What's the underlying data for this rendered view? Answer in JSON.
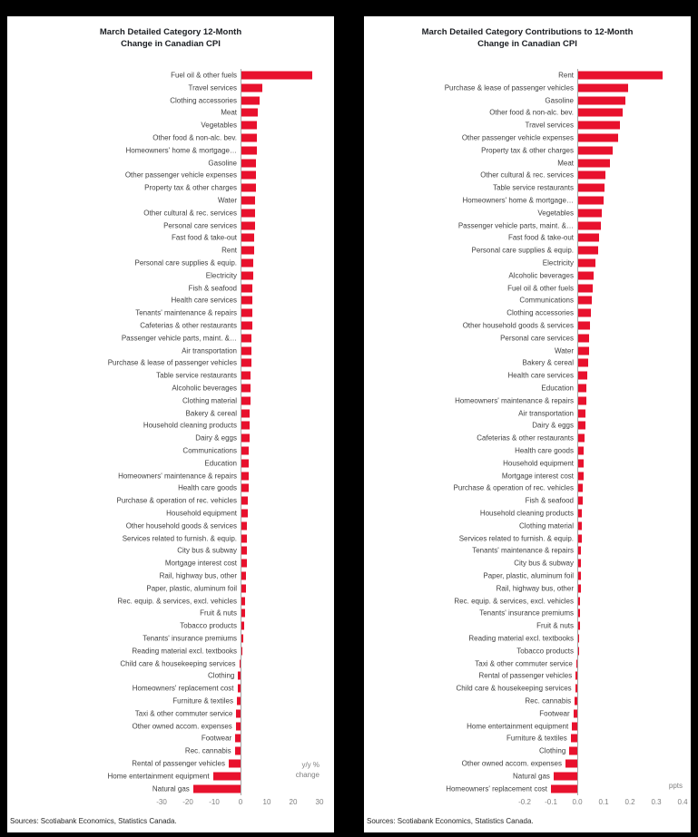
{
  "page": {
    "background": "#000000",
    "panel_background": "#ffffff",
    "bar_color": "#e8112d"
  },
  "charts": [
    {
      "title_line1": "March Detailed Category 12-Month",
      "title_line2": "Change in Canadian CPI",
      "unit_line1": "y/y %",
      "unit_line2": "change",
      "source": "Sources: Scotiabank Economics, Statistics Canada."
    },
    {
      "title_line1": "March Detailed Category Contributions to 12-Month",
      "title_line2": "Change in Canadian CPI",
      "unit_line1": "ppts",
      "unit_line2": "",
      "source": "Sources: Scotiabank Economics, Statistics Canada."
    }
  ],
  "chart_data": [
    {
      "type": "bar",
      "orientation": "horizontal",
      "title": "March Detailed Category 12-Month Change in Canadian CPI",
      "xlabel": "y/y % change",
      "xlim": [
        -30,
        30
      ],
      "xticks": [
        -30,
        -20,
        -10,
        0,
        10,
        20,
        30
      ],
      "xtick_labels": [
        "-30",
        "-20",
        "-10",
        "0",
        "10",
        "20",
        "30"
      ],
      "grid": false,
      "legend": "none",
      "bar_color": "#e8112d",
      "categories": [
        "Fuel oil & other fuels",
        "Travel services",
        "Clothing accessories",
        "Meat",
        "Vegetables",
        "Other food & non-alc. bev.",
        "Homeowners' home & mortgage…",
        "Gasoline",
        "Other passenger vehicle expenses",
        "Property tax & other charges",
        "Water",
        "Other cultural & rec. services",
        "Personal care services",
        "Fast food & take-out",
        "Rent",
        "Personal care supplies & equip.",
        "Electricity",
        "Fish & seafood",
        "Health care services",
        "Tenants' maintenance & repairs",
        "Cafeterias & other restaurants",
        "Passenger vehicle parts, maint. &…",
        "Air transportation",
        "Purchase & lease of passenger vehicles",
        "Table service restaurants",
        "Alcoholic beverages",
        "Clothing material",
        "Bakery & cereal",
        "Household cleaning products",
        "Dairy & eggs",
        "Communications",
        "Education",
        "Homeowners' maintenance & repairs",
        "Health care goods",
        "Purchase & operation of rec. vehicles",
        "Household equipment",
        "Other household goods & services",
        "Services related to furnish. & equip.",
        "City bus & subway",
        "Mortgage interest cost",
        "Rail, highway bus, other",
        "Paper, plastic, aluminum foil",
        "Rec. equip. & services, excl. vehicles",
        "Fruit & nuts",
        "Tobacco products",
        "Tenants' insurance premiums",
        "Reading material excl. textbooks",
        "Child care & housekeeping services",
        "Clothing",
        "Homeowners' replacement cost",
        "Furniture & textiles",
        "Taxi & other commuter service",
        "Other owned accom. expenses",
        "Footwear",
        "Rec. cannabis",
        "Rental of passenger vehicles",
        "Home entertainment equipment",
        "Natural gas"
      ],
      "values": [
        27.0,
        8.0,
        7.0,
        6.3,
        6.0,
        5.9,
        5.7,
        5.6,
        5.5,
        5.4,
        5.2,
        5.1,
        5.0,
        4.9,
        4.8,
        4.6,
        4.5,
        4.3,
        4.2,
        4.1,
        4.0,
        3.9,
        3.8,
        3.7,
        3.6,
        3.5,
        3.3,
        3.2,
        3.1,
        3.0,
        2.9,
        2.8,
        2.7,
        2.6,
        2.5,
        2.3,
        2.2,
        2.1,
        2.0,
        1.9,
        1.7,
        1.6,
        1.5,
        1.3,
        1.1,
        0.6,
        0.4,
        -0.5,
        -0.9,
        -1.2,
        -1.4,
        -1.6,
        -1.8,
        -2.0,
        -2.2,
        -4.5,
        -10.5,
        -18.0
      ]
    },
    {
      "type": "bar",
      "orientation": "horizontal",
      "title": "March Detailed Category Contributions to 12-Month Change in Canadian CPI",
      "xlabel": "ppts",
      "xlim": [
        -0.2,
        0.4
      ],
      "xticks": [
        -0.2,
        -0.1,
        0.0,
        0.1,
        0.2,
        0.3,
        0.4
      ],
      "xtick_labels": [
        "-0.2",
        "-0.1",
        "0.0",
        "0.1",
        "0.2",
        "0.3",
        "0.4"
      ],
      "grid": false,
      "legend": "none",
      "bar_color": "#e8112d",
      "categories": [
        "Rent",
        "Purchase & lease of passenger vehicles",
        "Gasoline",
        "Other food & non-alc. bev.",
        "Travel services",
        "Other passenger vehicle expenses",
        "Property tax & other charges",
        "Meat",
        "Other cultural & rec. services",
        "Table service restaurants",
        "Homeowners' home & mortgage…",
        "Vegetables",
        "Passenger vehicle parts, maint. &…",
        "Fast food & take-out",
        "Personal care supplies & equip.",
        "Electricity",
        "Alcoholic beverages",
        "Fuel oil & other fuels",
        "Communications",
        "Clothing accessories",
        "Other household goods & services",
        "Personal care services",
        "Water",
        "Bakery & cereal",
        "Health care services",
        "Education",
        "Homeowners' maintenance & repairs",
        "Air transportation",
        "Dairy & eggs",
        "Cafeterias & other restaurants",
        "Health care goods",
        "Household equipment",
        "Mortgage interest cost",
        "Purchase & operation of rec. vehicles",
        "Fish & seafood",
        "Household cleaning products",
        "Clothing material",
        "Services related to furnish. & equip.",
        "Tenants' maintenance & repairs",
        "City bus & subway",
        "Paper, plastic, aluminum foil",
        "Rail, highway bus, other",
        "Rec. equip. & services, excl. vehicles",
        "Tenants' insurance premiums",
        "Fruit & nuts",
        "Reading material excl. textbooks",
        "Tobacco products",
        "Taxi & other commuter service",
        "Rental of passenger vehicles",
        "Child care & housekeeping services",
        "Rec. cannabis",
        "Footwear",
        "Home entertainment equipment",
        "Furniture & textiles",
        "Clothing",
        "Other owned accom. expenses",
        "Natural gas",
        "Homeowners' replacement cost"
      ],
      "values": [
        0.32,
        0.19,
        0.18,
        0.17,
        0.16,
        0.15,
        0.13,
        0.12,
        0.105,
        0.1,
        0.095,
        0.09,
        0.085,
        0.08,
        0.075,
        0.065,
        0.06,
        0.055,
        0.05,
        0.048,
        0.045,
        0.042,
        0.04,
        0.037,
        0.035,
        0.032,
        0.03,
        0.028,
        0.026,
        0.024,
        0.022,
        0.021,
        0.02,
        0.018,
        0.016,
        0.015,
        0.014,
        0.013,
        0.012,
        0.011,
        0.01,
        0.009,
        0.008,
        0.007,
        0.006,
        0.004,
        0.003,
        -0.004,
        -0.006,
        -0.008,
        -0.01,
        -0.015,
        -0.02,
        -0.025,
        -0.03,
        -0.045,
        -0.09,
        -0.1
      ]
    }
  ]
}
